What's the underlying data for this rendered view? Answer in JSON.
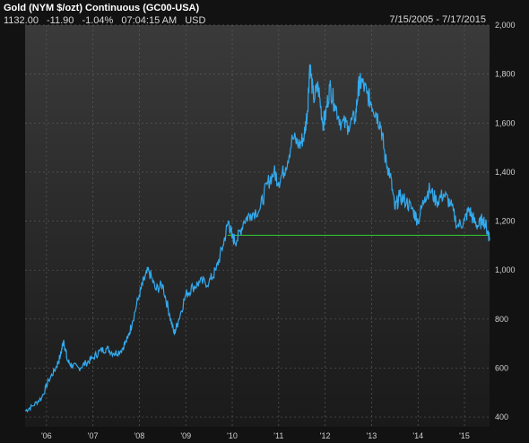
{
  "header": {
    "title": "Gold (NYM $/ozt) Continuous (GC00-USA)",
    "last": "1132.00",
    "change": "-11.90",
    "pct_change": "-1.04%",
    "time": "07:04:15 AM",
    "currency": "USD",
    "date_range": "7/15/2005 - 7/17/2015"
  },
  "colors": {
    "background": "#121212",
    "plot_bg_top": "#3a3a3a",
    "plot_bg_bottom": "#1a1a1a",
    "line": "#33aaee",
    "support": "#33cc33",
    "grid": "#5a5a5a"
  },
  "chart_data": {
    "type": "line",
    "title": "Gold (NYM $/ozt) Continuous (GC00-USA)",
    "xlabel": "",
    "ylabel": "",
    "x_ticks": [
      "'06",
      "'07",
      "'08",
      "'09",
      "'10",
      "'11",
      "'12",
      "'13",
      "'14",
      "'15"
    ],
    "y_ticks": [
      "400",
      "600",
      "800",
      "1,000",
      "1,200",
      "1,400",
      "1,600",
      "1,800",
      "2,000"
    ],
    "ylim": [
      360,
      2000
    ],
    "xlim": [
      2005.54,
      2015.54
    ],
    "y_axis_side": "right",
    "grid": true,
    "series": [
      {
        "x": [
          2005.54,
          2005.7,
          2005.9,
          2006.05,
          2006.2,
          2006.3,
          2006.37,
          2006.45,
          2006.55,
          2006.7,
          2006.85,
          2007.0,
          2007.15,
          2007.3,
          2007.45,
          2007.6,
          2007.75,
          2007.85,
          2008.0,
          2008.1,
          2008.2,
          2008.35,
          2008.5,
          2008.65,
          2008.75,
          2008.85,
          2009.0,
          2009.15,
          2009.3,
          2009.5,
          2009.65,
          2009.8,
          2009.92,
          2010.0,
          2010.1,
          2010.25,
          2010.4,
          2010.6,
          2010.75,
          2010.9,
          2011.0,
          2011.15,
          2011.3,
          2011.45,
          2011.55,
          2011.62,
          2011.67,
          2011.75,
          2011.85,
          2011.95,
          2012.0,
          2012.1,
          2012.2,
          2012.35,
          2012.5,
          2012.65,
          2012.72,
          2012.78,
          2012.9,
          2013.0,
          2013.1,
          2013.2,
          2013.3,
          2013.4,
          2013.5,
          2013.6,
          2013.75,
          2013.9,
          2014.0,
          2014.15,
          2014.25,
          2014.4,
          2014.55,
          2014.7,
          2014.85,
          2015.0,
          2015.1,
          2015.2,
          2015.3,
          2015.4,
          2015.5,
          2015.54
        ],
        "values": [
          425,
          445,
          480,
          550,
          600,
          650,
          715,
          630,
          610,
          600,
          620,
          640,
          670,
          680,
          660,
          670,
          720,
          790,
          900,
          960,
          1000,
          920,
          940,
          820,
          740,
          800,
          900,
          930,
          950,
          950,
          1000,
          1100,
          1200,
          1130,
          1120,
          1200,
          1230,
          1250,
          1350,
          1400,
          1360,
          1420,
          1540,
          1510,
          1550,
          1650,
          1840,
          1700,
          1750,
          1600,
          1620,
          1750,
          1680,
          1600,
          1590,
          1620,
          1750,
          1770,
          1720,
          1680,
          1640,
          1590,
          1450,
          1390,
          1250,
          1300,
          1280,
          1240,
          1200,
          1300,
          1330,
          1280,
          1310,
          1270,
          1180,
          1200,
          1250,
          1200,
          1180,
          1210,
          1160,
          1132
        ]
      }
    ],
    "support_level": {
      "value": 1142,
      "x_start": 2009.9,
      "x_end": 2015.54
    }
  }
}
